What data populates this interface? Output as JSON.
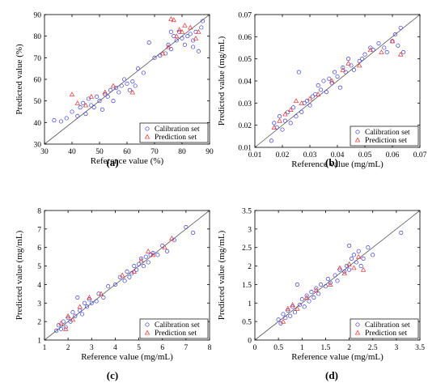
{
  "colors": {
    "calibration": "#3a3ad8",
    "prediction": "#e23030",
    "axis": "#000000",
    "line": "#555555"
  },
  "chart_data": [
    {
      "id": "a",
      "type": "scatter",
      "panel_label": "(a)",
      "xlabel": "Reference value (%)",
      "ylabel": "Predicted value (%)",
      "xlim": [
        30,
        90
      ],
      "ylim": [
        30,
        90
      ],
      "xticks": [
        30,
        40,
        50,
        60,
        70,
        80,
        90
      ],
      "yticks": [
        30,
        40,
        50,
        60,
        70,
        80,
        90
      ],
      "legend_position": "bottom-right",
      "series": [
        {
          "name": "Calibration set",
          "marker": "circle",
          "points": [
            [
              33.5,
              41
            ],
            [
              36,
              40.5
            ],
            [
              38,
              42
            ],
            [
              40,
              45
            ],
            [
              42,
              43
            ],
            [
              43,
              47
            ],
            [
              44,
              49
            ],
            [
              45,
              44
            ],
            [
              46,
              51
            ],
            [
              47,
              48
            ],
            [
              48,
              47
            ],
            [
              49,
              52
            ],
            [
              50,
              50
            ],
            [
              51,
              46
            ],
            [
              52,
              53
            ],
            [
              53,
              52
            ],
            [
              54,
              55
            ],
            [
              55,
              50
            ],
            [
              56,
              56
            ],
            [
              57,
              54
            ],
            [
              58,
              57
            ],
            [
              59,
              60
            ],
            [
              60,
              58
            ],
            [
              61,
              55
            ],
            [
              62,
              59
            ],
            [
              63,
              57
            ],
            [
              64,
              65
            ],
            [
              66,
              63
            ],
            [
              68,
              77
            ],
            [
              70,
              70
            ],
            [
              72,
              71
            ],
            [
              74,
              72
            ],
            [
              75,
              76
            ],
            [
              76,
              74
            ],
            [
              77,
              80
            ],
            [
              78,
              78
            ],
            [
              79,
              82
            ],
            [
              80,
              79
            ],
            [
              81,
              76
            ],
            [
              82,
              80
            ],
            [
              83,
              81
            ],
            [
              84,
              75
            ],
            [
              85,
              82
            ],
            [
              86,
              73
            ],
            [
              87,
              84
            ],
            [
              87.5,
              87
            ],
            [
              76,
              82
            ],
            [
              84,
              78
            ]
          ]
        },
        {
          "name": "Prediction set",
          "marker": "triangle",
          "points": [
            [
              40,
              53
            ],
            [
              42,
              49
            ],
            [
              45,
              48
            ],
            [
              47,
              52
            ],
            [
              52,
              54
            ],
            [
              55,
              57
            ],
            [
              62,
              54
            ],
            [
              73,
              72
            ],
            [
              75,
              75
            ],
            [
              76,
              88
            ],
            [
              77,
              87.5
            ],
            [
              78,
              80
            ],
            [
              79,
              83
            ],
            [
              80,
              82
            ],
            [
              81,
              85
            ],
            [
              83,
              84
            ],
            [
              85,
              79
            ],
            [
              86,
              82
            ]
          ]
        }
      ]
    },
    {
      "id": "b",
      "type": "scatter",
      "panel_label": "(b)",
      "xlabel": "Reference value (mg/mL)",
      "ylabel": "Predicted value (mg/mL)",
      "xlim": [
        0.01,
        0.07
      ],
      "ylim": [
        0.01,
        0.07
      ],
      "xticks": [
        0.01,
        0.02,
        0.03,
        0.04,
        0.05,
        0.06,
        0.07
      ],
      "yticks": [
        0.01,
        0.02,
        0.03,
        0.04,
        0.05,
        0.06,
        0.07
      ],
      "legend_position": "bottom-right",
      "series": [
        {
          "name": "Calibration set",
          "marker": "circle",
          "points": [
            [
              0.016,
              0.013
            ],
            [
              0.017,
              0.021
            ],
            [
              0.018,
              0.019
            ],
            [
              0.019,
              0.024
            ],
            [
              0.02,
              0.018
            ],
            [
              0.021,
              0.022
            ],
            [
              0.022,
              0.026
            ],
            [
              0.023,
              0.021
            ],
            [
              0.024,
              0.028
            ],
            [
              0.025,
              0.024
            ],
            [
              0.026,
              0.044
            ],
            [
              0.027,
              0.026
            ],
            [
              0.028,
              0.03
            ],
            [
              0.029,
              0.031
            ],
            [
              0.03,
              0.029
            ],
            [
              0.031,
              0.033
            ],
            [
              0.032,
              0.034
            ],
            [
              0.033,
              0.038
            ],
            [
              0.034,
              0.036
            ],
            [
              0.035,
              0.04
            ],
            [
              0.036,
              0.035
            ],
            [
              0.037,
              0.041
            ],
            [
              0.038,
              0.039
            ],
            [
              0.039,
              0.044
            ],
            [
              0.04,
              0.042
            ],
            [
              0.041,
              0.037
            ],
            [
              0.042,
              0.046
            ],
            [
              0.043,
              0.044
            ],
            [
              0.044,
              0.05
            ],
            [
              0.045,
              0.047
            ],
            [
              0.046,
              0.045
            ],
            [
              0.048,
              0.049
            ],
            [
              0.049,
              0.05
            ],
            [
              0.05,
              0.052
            ],
            [
              0.052,
              0.055
            ],
            [
              0.053,
              0.054
            ],
            [
              0.055,
              0.057
            ],
            [
              0.057,
              0.055
            ],
            [
              0.058,
              0.053
            ],
            [
              0.06,
              0.058
            ],
            [
              0.061,
              0.061
            ],
            [
              0.062,
              0.056
            ],
            [
              0.063,
              0.064
            ],
            [
              0.064,
              0.053
            ]
          ]
        },
        {
          "name": "Prediction set",
          "marker": "triangle",
          "points": [
            [
              0.017,
              0.019
            ],
            [
              0.019,
              0.022
            ],
            [
              0.021,
              0.025
            ],
            [
              0.023,
              0.027
            ],
            [
              0.025,
              0.031
            ],
            [
              0.027,
              0.03
            ],
            [
              0.03,
              0.032
            ],
            [
              0.033,
              0.034
            ],
            [
              0.038,
              0.04
            ],
            [
              0.042,
              0.045
            ],
            [
              0.044,
              0.048
            ],
            [
              0.048,
              0.047
            ],
            [
              0.052,
              0.054
            ],
            [
              0.056,
              0.053
            ],
            [
              0.06,
              0.058
            ],
            [
              0.063,
              0.052
            ]
          ]
        }
      ]
    },
    {
      "id": "c",
      "type": "scatter",
      "panel_label": "(c)",
      "xlabel": "Reference value (mg/mL)",
      "ylabel": "Predicted value (mg/mL)",
      "xlim": [
        1,
        8
      ],
      "ylim": [
        1,
        8
      ],
      "xticks": [
        1,
        2,
        3,
        4,
        5,
        6,
        7,
        8
      ],
      "yticks": [
        1,
        2,
        3,
        4,
        5,
        6,
        7,
        8
      ],
      "legend_position": "bottom-right",
      "series": [
        {
          "name": "Calibration set",
          "marker": "circle",
          "points": [
            [
              1.5,
              1.5
            ],
            [
              1.6,
              1.8
            ],
            [
              1.7,
              1.6
            ],
            [
              1.8,
              2.0
            ],
            [
              1.9,
              1.7
            ],
            [
              2.0,
              2.2
            ],
            [
              2.1,
              2.0
            ],
            [
              2.2,
              2.5
            ],
            [
              2.3,
              2.3
            ],
            [
              2.4,
              3.3
            ],
            [
              2.5,
              2.6
            ],
            [
              2.6,
              2.4
            ],
            [
              2.7,
              3.0
            ],
            [
              2.8,
              2.8
            ],
            [
              2.9,
              3.2
            ],
            [
              3.0,
              3.0
            ],
            [
              3.2,
              3.1
            ],
            [
              3.3,
              3.5
            ],
            [
              3.5,
              3.3
            ],
            [
              3.7,
              3.9
            ],
            [
              4.0,
              4.0
            ],
            [
              4.2,
              4.4
            ],
            [
              4.4,
              4.2
            ],
            [
              4.5,
              4.7
            ],
            [
              4.6,
              4.4
            ],
            [
              4.7,
              4.6
            ],
            [
              4.8,
              5.0
            ],
            [
              4.9,
              4.8
            ],
            [
              5.0,
              5.1
            ],
            [
              5.1,
              5.4
            ],
            [
              5.2,
              5.0
            ],
            [
              5.3,
              5.5
            ],
            [
              5.4,
              5.2
            ],
            [
              5.5,
              5.6
            ],
            [
              5.6,
              5.7
            ],
            [
              5.8,
              5.6
            ],
            [
              6.0,
              6.1
            ],
            [
              6.2,
              5.8
            ],
            [
              6.5,
              6.4
            ],
            [
              7.0,
              7.1
            ],
            [
              7.3,
              6.8
            ]
          ]
        },
        {
          "name": "Prediction set",
          "marker": "triangle",
          "points": [
            [
              1.7,
              1.9
            ],
            [
              1.9,
              1.6
            ],
            [
              2.0,
              2.3
            ],
            [
              2.2,
              2.1
            ],
            [
              2.5,
              2.8
            ],
            [
              2.9,
              3.3
            ],
            [
              3.4,
              3.5
            ],
            [
              4.3,
              4.5
            ],
            [
              4.8,
              4.7
            ],
            [
              5.1,
              5.3
            ],
            [
              5.4,
              5.8
            ],
            [
              5.6,
              5.6
            ],
            [
              6.1,
              6.0
            ],
            [
              6.4,
              6.5
            ]
          ]
        }
      ]
    },
    {
      "id": "d",
      "type": "scatter",
      "panel_label": "(d)",
      "xlabel": "Reference value (mg/mL)",
      "ylabel": "Predicted value (mg/mL)",
      "xlim": [
        0,
        3.5
      ],
      "ylim": [
        0,
        3.5
      ],
      "xticks": [
        0,
        0.5,
        1,
        1.5,
        2,
        2.5,
        3,
        3.5
      ],
      "yticks": [
        0,
        0.5,
        1,
        1.5,
        2,
        2.5,
        3,
        3.5
      ],
      "legend_position": "bottom-right",
      "series": [
        {
          "name": "Calibration set",
          "marker": "circle",
          "points": [
            [
              0.5,
              0.55
            ],
            [
              0.55,
              0.45
            ],
            [
              0.6,
              0.7
            ],
            [
              0.65,
              0.6
            ],
            [
              0.7,
              0.8
            ],
            [
              0.75,
              0.65
            ],
            [
              0.8,
              0.9
            ],
            [
              0.85,
              0.75
            ],
            [
              0.9,
              1.5
            ],
            [
              0.95,
              0.95
            ],
            [
              1.0,
              1.1
            ],
            [
              1.05,
              0.9
            ],
            [
              1.1,
              1.2
            ],
            [
              1.15,
              1.05
            ],
            [
              1.2,
              1.3
            ],
            [
              1.25,
              1.15
            ],
            [
              1.3,
              1.4
            ],
            [
              1.35,
              1.25
            ],
            [
              1.4,
              1.5
            ],
            [
              1.5,
              1.45
            ],
            [
              1.55,
              1.65
            ],
            [
              1.6,
              1.55
            ],
            [
              1.7,
              1.75
            ],
            [
              1.75,
              1.6
            ],
            [
              1.8,
              1.9
            ],
            [
              1.9,
              1.85
            ],
            [
              1.95,
              2.0
            ],
            [
              2.0,
              1.9
            ],
            [
              2.05,
              2.2
            ],
            [
              2.1,
              2.3
            ],
            [
              2.15,
              2.1
            ],
            [
              2.2,
              2.4
            ],
            [
              2.25,
              2.0
            ],
            [
              2.3,
              2.2
            ],
            [
              2.4,
              2.5
            ],
            [
              2.5,
              2.3
            ],
            [
              3.1,
              2.9
            ],
            [
              2.0,
              2.55
            ]
          ]
        },
        {
          "name": "Prediction set",
          "marker": "triangle",
          "points": [
            [
              0.6,
              0.5
            ],
            [
              0.7,
              0.85
            ],
            [
              0.8,
              0.95
            ],
            [
              0.9,
              0.85
            ],
            [
              1.1,
              1.15
            ],
            [
              1.3,
              1.35
            ],
            [
              1.6,
              1.5
            ],
            [
              1.8,
              1.95
            ],
            [
              1.9,
              1.8
            ],
            [
              2.0,
              2.05
            ],
            [
              2.1,
              1.95
            ],
            [
              2.2,
              2.25
            ],
            [
              2.3,
              1.9
            ]
          ]
        }
      ]
    }
  ]
}
